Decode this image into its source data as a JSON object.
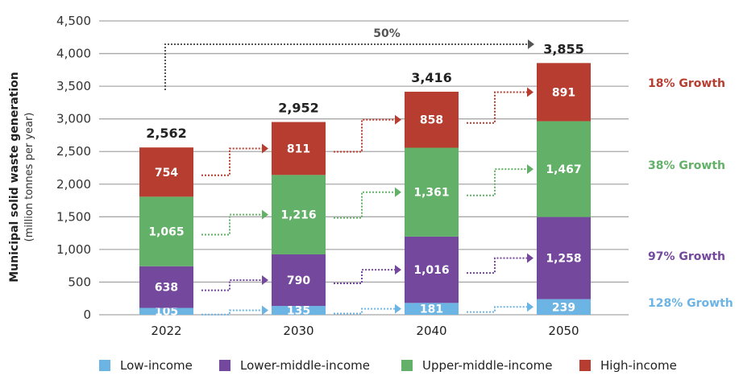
{
  "chart_data": {
    "type": "bar",
    "stacked": true,
    "title": "",
    "ylabel": "Municipal solid waste generation",
    "ylabel_sub": "(million tonnes per year)",
    "xlabel": "",
    "ylim": [
      0,
      4500
    ],
    "yticks": [
      0,
      500,
      1000,
      1500,
      2000,
      2500,
      3000,
      3500,
      4000,
      4500
    ],
    "ytick_labels": [
      "0",
      "500",
      "1,000",
      "1,500",
      "2,000",
      "2,500",
      "3,000",
      "3,500",
      "4,000",
      "4,500"
    ],
    "grid": true,
    "categories": [
      "2022",
      "2030",
      "2040",
      "2050"
    ],
    "series": [
      {
        "name": "Low-income",
        "color": "#6cb4e4",
        "values": [
          105,
          135,
          181,
          239
        ],
        "labels": [
          "105",
          "135",
          "181",
          "239"
        ],
        "growth": "128% Growth"
      },
      {
        "name": "Lower-middle-income",
        "color": "#74489d",
        "values": [
          638,
          790,
          1016,
          1258
        ],
        "labels": [
          "638",
          "790",
          "1,016",
          "1,258"
        ],
        "growth": "97% Growth"
      },
      {
        "name": "Upper-middle-income",
        "color": "#63b068",
        "values": [
          1065,
          1216,
          1361,
          1467
        ],
        "labels": [
          "1,065",
          "1,216",
          "1,361",
          "1,467"
        ],
        "growth": "38% Growth"
      },
      {
        "name": "High-income",
        "color": "#b63d30",
        "values": [
          754,
          811,
          858,
          891
        ],
        "labels": [
          "754",
          "811",
          "858",
          "891"
        ],
        "growth": "18% Growth"
      }
    ],
    "totals": [
      2562,
      2952,
      3416,
      3855
    ],
    "total_labels": [
      "2,562",
      "2,952",
      "3,416",
      "3,855"
    ],
    "annotation": {
      "text": "50%",
      "from": "2022",
      "to": "2050"
    },
    "legend_position": "bottom"
  },
  "legend": [
    {
      "label": "Low-income",
      "color": "#6cb4e4"
    },
    {
      "label": "Lower-middle-income",
      "color": "#74489d"
    },
    {
      "label": "Upper-middle-income",
      "color": "#63b068"
    },
    {
      "label": "High-income",
      "color": "#b63d30"
    }
  ]
}
